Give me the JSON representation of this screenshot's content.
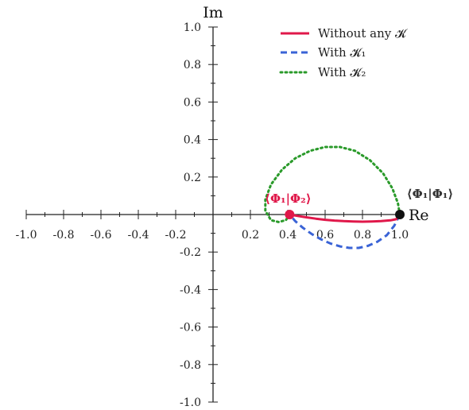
{
  "chart_data": {
    "type": "line",
    "title": "",
    "xlabel": "Re",
    "ylabel": "Im",
    "xlim": [
      -1.0,
      1.0
    ],
    "ylim": [
      -1.0,
      1.0
    ],
    "grid": false,
    "legend_position": "top-right",
    "x_ticks": [
      "-1.0",
      "-0.8",
      "-0.6",
      "-0.4",
      "-0.2",
      "0.2",
      "0.4",
      "0.6",
      "0.8",
      "1.0"
    ],
    "y_ticks": [
      "1.0",
      "0.8",
      "0.6",
      "0.4",
      "0.2",
      "-0.2",
      "-0.4",
      "-0.6",
      "-0.8",
      "-1.0"
    ],
    "series": [
      {
        "name": "Without any 𝓚",
        "color": "#e0184a",
        "style": "solid",
        "x": [
          1.0,
          0.98,
          0.95,
          0.9,
          0.85,
          0.8,
          0.75,
          0.7,
          0.65,
          0.6,
          0.55,
          0.5,
          0.45,
          0.41
        ],
        "y": [
          0.0,
          -0.025,
          -0.031,
          -0.035,
          -0.037,
          -0.038,
          -0.037,
          -0.035,
          -0.032,
          -0.028,
          -0.022,
          -0.015,
          -0.007,
          0.0
        ]
      },
      {
        "name": "With 𝓚₁",
        "color": "#3a63d6",
        "style": "dashed",
        "x": [
          1.0,
          0.97,
          0.93,
          0.88,
          0.83,
          0.78,
          0.73,
          0.68,
          0.63,
          0.58,
          0.53,
          0.48,
          0.44,
          0.41
        ],
        "y": [
          0.0,
          -0.06,
          -0.11,
          -0.145,
          -0.167,
          -0.178,
          -0.178,
          -0.17,
          -0.155,
          -0.133,
          -0.105,
          -0.07,
          -0.035,
          0.0
        ]
      },
      {
        "name": "With 𝓚₂",
        "color": "#2a9a2a",
        "style": "dotted",
        "x": [
          1.0,
          0.99,
          0.96,
          0.91,
          0.84,
          0.76,
          0.68,
          0.6,
          0.52,
          0.44,
          0.37,
          0.31,
          0.28,
          0.28,
          0.31,
          0.35,
          0.39,
          0.41
        ],
        "y": [
          0.0,
          0.06,
          0.14,
          0.22,
          0.29,
          0.34,
          0.36,
          0.36,
          0.34,
          0.3,
          0.24,
          0.16,
          0.08,
          0.02,
          -0.03,
          -0.04,
          -0.03,
          0.0
        ]
      }
    ],
    "points": [
      {
        "label": "⟨Φ₁|Φ₂⟩",
        "x": 0.41,
        "y": 0.0,
        "color": "#e0184a"
      },
      {
        "label": "⟨Φ₁|Φ₁⟩",
        "x": 1.0,
        "y": 0.0,
        "color": "#111111"
      }
    ]
  }
}
